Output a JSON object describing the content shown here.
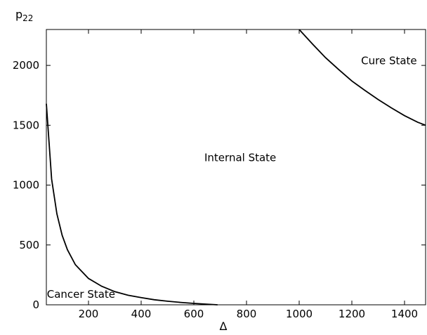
{
  "chart_data": {
    "type": "line",
    "title": "",
    "xlabel": "Δ",
    "ylabel_main": "p",
    "ylabel_sub": "22",
    "xlim": [
      40,
      1480
    ],
    "ylim": [
      0,
      2300
    ],
    "xticks": [
      200,
      400,
      600,
      800,
      1000,
      1200,
      1400
    ],
    "yticks": [
      0,
      500,
      1000,
      1500,
      2000
    ],
    "grid": false,
    "line_color": "#000000",
    "series": [
      {
        "key": "lower-boundary",
        "x": [
          40,
          60,
          80,
          100,
          120,
          150,
          200,
          250,
          300,
          350,
          400,
          450,
          500,
          550,
          600,
          650,
          690
        ],
        "y": [
          1680,
          1050,
          760,
          580,
          460,
          335,
          220,
          155,
          110,
          80,
          60,
          42,
          30,
          20,
          12,
          5,
          0
        ]
      },
      {
        "key": "upper-boundary",
        "x": [
          1000,
          1050,
          1100,
          1150,
          1200,
          1250,
          1300,
          1350,
          1400,
          1450,
          1480
        ],
        "y": [
          2300,
          2180,
          2065,
          1965,
          1870,
          1790,
          1715,
          1645,
          1580,
          1525,
          1500
        ]
      }
    ],
    "annotations": [
      {
        "key": "cancer",
        "text": "Cancer State",
        "x": 42,
        "y": 60
      },
      {
        "key": "internal",
        "text": "Internal State",
        "x": 640,
        "y": 1200
      },
      {
        "key": "cure",
        "text": "Cure State",
        "x": 1235,
        "y": 2010
      }
    ]
  }
}
